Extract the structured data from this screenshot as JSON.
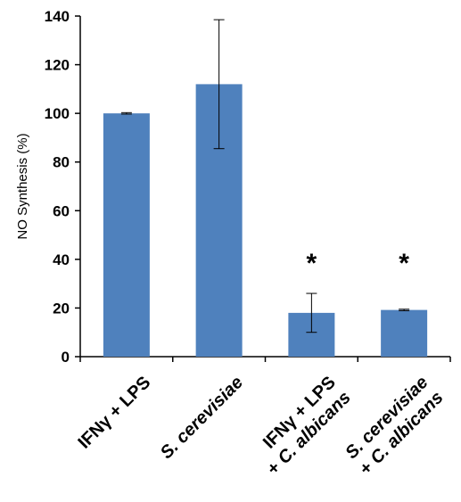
{
  "chart_data": {
    "type": "bar",
    "categories": [
      {
        "line1": [
          {
            "text": "IFN",
            "italic": false
          },
          {
            "text": "γ",
            "italic": false
          },
          {
            "text": " + LPS",
            "italic": false
          }
        ],
        "line2": []
      },
      {
        "line1": [
          {
            "text": "S. cerevisiae",
            "italic": true
          }
        ],
        "line2": []
      },
      {
        "line1": [
          {
            "text": "IFN",
            "italic": false
          },
          {
            "text": "γ",
            "italic": false
          },
          {
            "text": " + LPS",
            "italic": false
          }
        ],
        "line2": [
          {
            "text": "+ ",
            "italic": false
          },
          {
            "text": "C. albicans",
            "italic": true
          }
        ]
      },
      {
        "line1": [
          {
            "text": "S. cerevisiae",
            "italic": true
          }
        ],
        "line2": [
          {
            "text": "+ ",
            "italic": false
          },
          {
            "text": "C. albicans",
            "italic": true
          }
        ]
      }
    ],
    "values": [
      100,
      112,
      18,
      19.2
    ],
    "errors": [
      0.3,
      26.5,
      8,
      0.3
    ],
    "significance": [
      "",
      "",
      "*",
      "*"
    ],
    "ylabel": "NO Synthesis (%)",
    "ylim": [
      0,
      140
    ],
    "yticks": [
      0,
      20,
      40,
      60,
      80,
      100,
      120,
      140
    ],
    "bar_color": "#4f81bd",
    "grid": false,
    "legend": "none"
  }
}
